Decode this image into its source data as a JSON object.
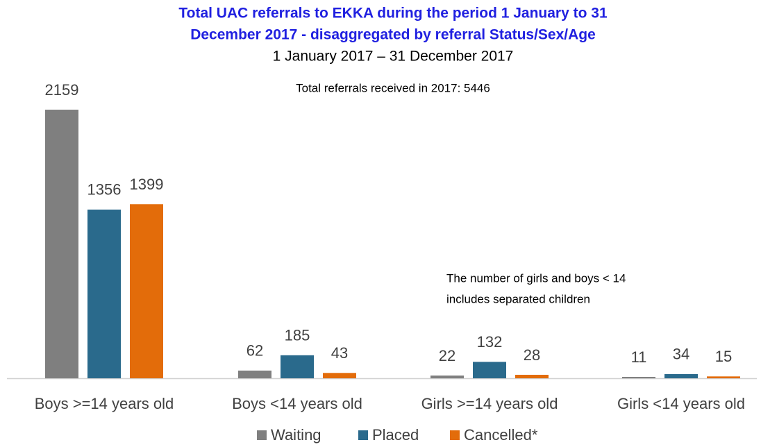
{
  "chart_data": {
    "type": "bar",
    "title": [
      "Total UAC referrals to EKKA during the period 1 January to 31",
      "December 2017 - disaggregated by referral Status/Sex/Age"
    ],
    "subtitle": "1 January 2017 – 31 December 2017",
    "annotations": [
      [
        "Total referrals received in 2017: 5446"
      ],
      [
        "The number of girls and boys < 14",
        "includes separated children"
      ]
    ],
    "categories": [
      "Boys >=14 years old",
      "Boys <14 years old",
      "Girls >=14 years old",
      "Girls <14 years old"
    ],
    "series": [
      {
        "name": "Waiting",
        "color": "#7f7f7f",
        "values": [
          2159,
          62,
          22,
          11
        ]
      },
      {
        "name": "Placed",
        "color": "#2a6a8c",
        "values": [
          1356,
          185,
          132,
          34
        ]
      },
      {
        "name": "Cancelled*",
        "color": "#e36c0a",
        "values": [
          1399,
          43,
          28,
          15
        ]
      }
    ],
    "legend": "bottom"
  }
}
